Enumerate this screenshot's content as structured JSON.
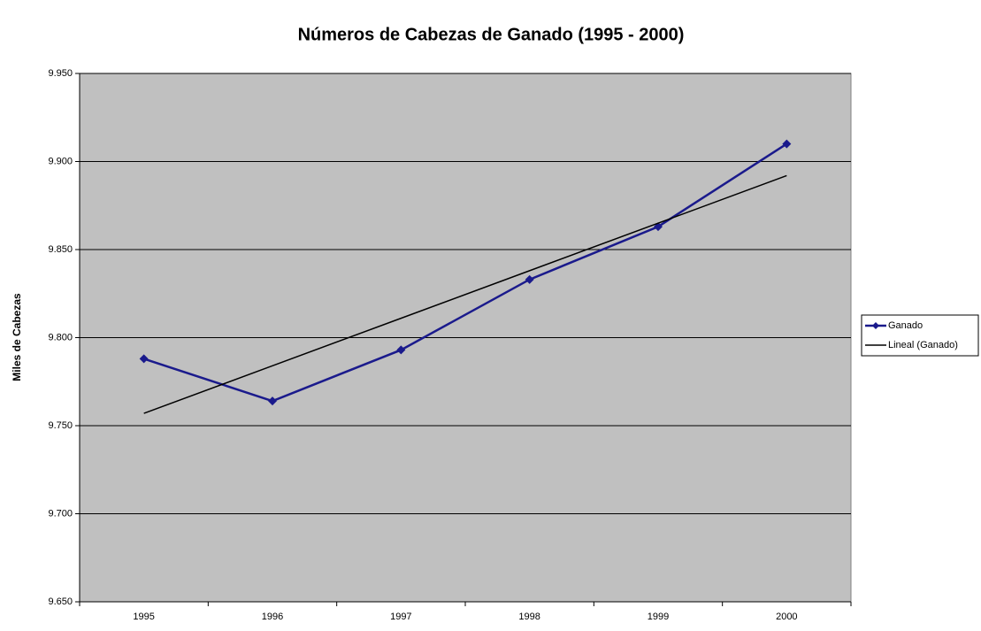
{
  "chart_data": {
    "type": "line",
    "title": "Números de Cabezas de Ganado (1995 - 2000)",
    "y_label": "Miles de Cabezas",
    "categories": [
      "1995",
      "1996",
      "1997",
      "1998",
      "1999",
      "2000"
    ],
    "series": [
      {
        "name": "Ganado",
        "color": "#1a1a8c",
        "marker": "diamond",
        "values": [
          9.788,
          9.764,
          9.793,
          9.833,
          9.863,
          9.91
        ]
      },
      {
        "name": "Lineal (Ganado)",
        "color": "#000000",
        "marker": "none",
        "values": [
          9.757,
          9.784,
          9.811,
          9.838,
          9.865,
          9.892
        ]
      }
    ],
    "ylim": [
      9.65,
      9.95
    ],
    "yticks": [
      {
        "value": 9.65,
        "label": "9.650"
      },
      {
        "value": 9.7,
        "label": "9.700"
      },
      {
        "value": 9.75,
        "label": "9.750"
      },
      {
        "value": 9.8,
        "label": "9.800"
      },
      {
        "value": 9.85,
        "label": "9.850"
      },
      {
        "value": 9.9,
        "label": "9.900"
      },
      {
        "value": 9.95,
        "label": "9.950"
      }
    ],
    "grid": true,
    "plot_background": "#c0c0c0",
    "legend": "right"
  }
}
